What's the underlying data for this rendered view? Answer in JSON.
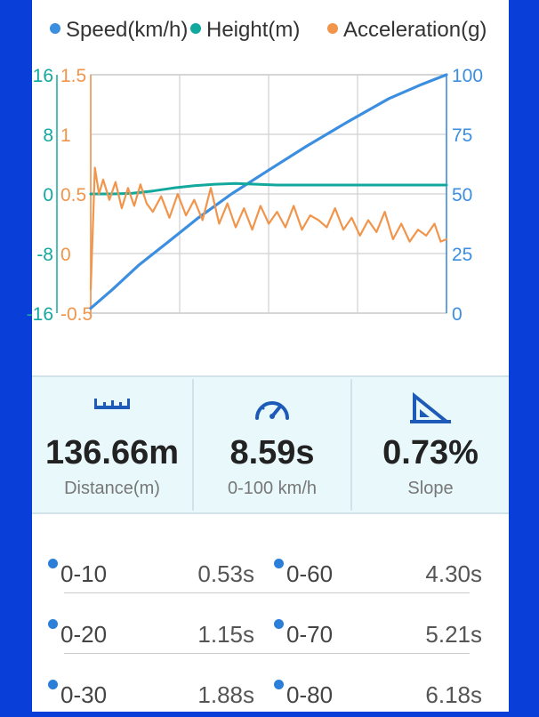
{
  "legend": [
    {
      "label": "Speed(km/h)",
      "color": "#3b8ee0"
    },
    {
      "label": "Height(m)",
      "color": "#13a89e"
    },
    {
      "label": "Acceleration(g)",
      "color": "#f0954b"
    }
  ],
  "chart_data": {
    "type": "line",
    "grid": true,
    "axes": {
      "height_ticks": [
        "16",
        "8",
        "0",
        "-8",
        "-16"
      ],
      "height_range": [
        -16,
        16
      ],
      "accel_ticks": [
        "1.5",
        "1",
        "0.5",
        "0",
        "-0.5"
      ],
      "accel_range": [
        -0.5,
        1.5
      ],
      "speed_ticks": [
        "100",
        "75",
        "50",
        "25",
        "0"
      ],
      "speed_range": [
        0,
        100
      ],
      "time_range": [
        0,
        8.59
      ]
    },
    "series": [
      {
        "name": "Speed(km/h)",
        "color": "#3b8ee0",
        "x": [
          0,
          0.53,
          1.15,
          1.88,
          2.6,
          3.4,
          4.3,
          5.21,
          6.18,
          7.2,
          8.0,
          8.59
        ],
        "y": [
          2,
          10,
          20,
          30,
          40,
          50,
          60,
          70,
          80,
          90,
          96,
          100
        ]
      },
      {
        "name": "Height(m)",
        "color": "#13a89e",
        "x": [
          0,
          0.5,
          1.0,
          1.5,
          2.0,
          2.5,
          3.0,
          3.5,
          4.0,
          4.5,
          5.0,
          6.0,
          7.0,
          8.0,
          8.59
        ],
        "y": [
          0,
          0,
          0.1,
          0.4,
          0.8,
          1.1,
          1.3,
          1.4,
          1.3,
          1.2,
          1.2,
          1.2,
          1.2,
          1.2,
          1.2
        ]
      },
      {
        "name": "Acceleration(g)",
        "color": "#f0954b",
        "x": [
          0,
          0.1,
          0.2,
          0.3,
          0.45,
          0.6,
          0.75,
          0.9,
          1.05,
          1.2,
          1.35,
          1.5,
          1.7,
          1.9,
          2.1,
          2.3,
          2.5,
          2.7,
          2.9,
          3.1,
          3.3,
          3.5,
          3.7,
          3.9,
          4.1,
          4.3,
          4.5,
          4.7,
          4.9,
          5.1,
          5.3,
          5.5,
          5.7,
          5.9,
          6.1,
          6.3,
          6.5,
          6.7,
          6.9,
          7.1,
          7.3,
          7.5,
          7.7,
          7.9,
          8.1,
          8.3,
          8.45,
          8.59
        ],
        "y": [
          -0.3,
          0.72,
          0.5,
          0.62,
          0.45,
          0.6,
          0.38,
          0.55,
          0.4,
          0.58,
          0.42,
          0.35,
          0.48,
          0.3,
          0.5,
          0.32,
          0.45,
          0.28,
          0.55,
          0.25,
          0.42,
          0.22,
          0.38,
          0.2,
          0.4,
          0.25,
          0.35,
          0.22,
          0.4,
          0.2,
          0.32,
          0.28,
          0.22,
          0.38,
          0.2,
          0.3,
          0.15,
          0.28,
          0.18,
          0.35,
          0.12,
          0.25,
          0.1,
          0.2,
          0.15,
          0.25,
          0.1,
          0.12
        ]
      }
    ]
  },
  "stats": [
    {
      "value": "136.66m",
      "label": "Distance(m)",
      "icon": "ruler-icon"
    },
    {
      "value": "8.59s",
      "label": "0-100 km/h",
      "icon": "speedometer-icon"
    },
    {
      "value": "0.73%",
      "label": "Slope",
      "icon": "slope-icon"
    }
  ],
  "splits": [
    [
      {
        "range": "0-10",
        "time": "0.53s"
      },
      {
        "range": "0-60",
        "time": "4.30s"
      }
    ],
    [
      {
        "range": "0-20",
        "time": "1.15s"
      },
      {
        "range": "0-70",
        "time": "5.21s"
      }
    ],
    [
      {
        "range": "0-30",
        "time": "1.88s"
      },
      {
        "range": "0-80",
        "time": "6.18s"
      }
    ]
  ]
}
